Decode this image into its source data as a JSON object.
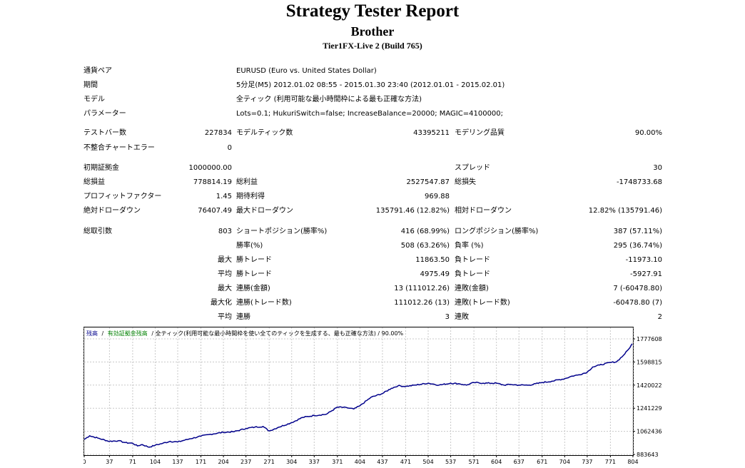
{
  "header": {
    "title": "Strategy Tester Report",
    "subtitle": "Brother",
    "server": "Tier1FX-Live 2 (Build 765)"
  },
  "settings": [
    {
      "label": "通貨ペア",
      "value": "EURUSD (Euro vs. United States Dollar)"
    },
    {
      "label": "期間",
      "value": "5分足(M5) 2012.01.02 08:55 - 2015.01.30 23:40 (2012.01.01 - 2015.02.01)"
    },
    {
      "label": "モデル",
      "value": "全ティック (利用可能な最小時間枠による最も正確な方法)"
    },
    {
      "label": "パラメーター",
      "value": "Lots=0.1; HukuriSwitch=false; IncreaseBalance=20000; MAGIC=4100000;"
    }
  ],
  "stats": {
    "test_bars": {
      "label": "テストバー数",
      "value": "227834"
    },
    "model_ticks": {
      "label": "モデルティック数",
      "value": "43395211"
    },
    "model_quality": {
      "label": "モデリング品質",
      "value": "90.00%"
    },
    "mismatch_errors": {
      "label": "不整合チャートエラー",
      "value": "0"
    },
    "initial_deposit": {
      "label": "初期証拠金",
      "value": "1000000.00"
    },
    "spread": {
      "label": "スプレッド",
      "value": "30"
    },
    "net_profit": {
      "label": "総損益",
      "value": "778814.19"
    },
    "gross_profit": {
      "label": "総利益",
      "value": "2527547.87"
    },
    "gross_loss": {
      "label": "総損失",
      "value": "-1748733.68"
    },
    "profit_factor": {
      "label": "プロフィットファクター",
      "value": "1.45"
    },
    "expected_payoff": {
      "label": "期待利得",
      "value": "969.88"
    },
    "absolute_drawdown": {
      "label": "絶対ドローダウン",
      "value": "76407.49"
    },
    "maximal_drawdown": {
      "label": "最大ドローダウン",
      "value": "135791.46 (12.82%)"
    },
    "relative_drawdown": {
      "label": "相対ドローダウン",
      "value": "12.82% (135791.46)"
    },
    "total_trades": {
      "label": "総取引数",
      "value": "803"
    },
    "short_positions": {
      "label": "ショートポジション(勝率%)",
      "value": "416 (68.99%)"
    },
    "long_positions": {
      "label": "ロングポジション(勝率%)",
      "value": "387 (57.11%)"
    },
    "profit_trades": {
      "label": "勝率(%)",
      "value": "508 (63.26%)"
    },
    "loss_trades": {
      "label": "負率 (%)",
      "value": "295 (36.74%)"
    },
    "largest": {
      "label": "最大",
      "profit_label": "勝トレード",
      "profit": "11863.50",
      "loss_label": "負トレード",
      "loss": "-11973.10"
    },
    "average": {
      "label": "平均",
      "profit_label": "勝トレード",
      "profit": "4975.49",
      "loss_label": "負トレード",
      "loss": "-5927.91"
    },
    "max_consecutive": {
      "label": "最大",
      "wins_label": "連勝(金額)",
      "wins": "13 (111012.26)",
      "losses_label": "連敗(金額)",
      "losses": "7 (-60478.80)"
    },
    "maximal_consecutive": {
      "label": "最大化",
      "wins_label": "連勝(トレード数)",
      "wins": "111012.26 (13)",
      "losses_label": "連敗(トレード数)",
      "losses": "-60478.80 (7)"
    },
    "average_consecutive": {
      "label": "平均",
      "wins_label": "連勝",
      "wins": "3",
      "losses_label": "連敗",
      "losses": "2"
    }
  },
  "chart_data": {
    "type": "line",
    "legend": {
      "balance": "残高",
      "separator": "/",
      "equity": "有効証拠金残高",
      "model": "/ 全ティック(利用可能な最小時間枠を使い全てのティックを生成する、最も正確な方法) / 90.00%"
    },
    "x_ticks": [
      "0",
      "37",
      "71",
      "104",
      "137",
      "171",
      "204",
      "237",
      "271",
      "304",
      "337",
      "371",
      "404",
      "437",
      "471",
      "504",
      "537",
      "571",
      "604",
      "637",
      "671",
      "704",
      "737",
      "771",
      "804"
    ],
    "y_ticks": [
      "1777608",
      "1598815",
      "1420022",
      "1241229",
      "1062436",
      "883643"
    ],
    "xlim": [
      0,
      803
    ],
    "ylim": [
      883643,
      1866000
    ],
    "grid": true,
    "colors": {
      "balance": "#00008b",
      "equity": "#008000",
      "grid": "#c8c8c8",
      "axis": "#000000",
      "label": "#000000"
    },
    "series": [
      {
        "name": "残高",
        "x": [
          0,
          8,
          20,
          37,
          50,
          60,
          71,
          78,
          85,
          95,
          104,
          115,
          126,
          137,
          155,
          171,
          185,
          204,
          220,
          237,
          250,
          262,
          271,
          285,
          304,
          320,
          337,
          355,
          371,
          385,
          395,
          404,
          420,
          437,
          450,
          460,
          471,
          485,
          504,
          520,
          537,
          550,
          560,
          571,
          585,
          604,
          615,
          625,
          637,
          652,
          671,
          685,
          704,
          715,
          725,
          737,
          745,
          755,
          771,
          780,
          790,
          798,
          803
        ],
        "y": [
          1000000,
          1028000,
          1010000,
          985000,
          990000,
          975000,
          970000,
          950000,
          960000,
          940000,
          955000,
          970000,
          985000,
          980000,
          1005000,
          1025000,
          1040000,
          1055000,
          1060000,
          1085000,
          1095000,
          1100000,
          1065000,
          1095000,
          1130000,
          1170000,
          1185000,
          1195000,
          1250000,
          1245000,
          1235000,
          1260000,
          1325000,
          1355000,
          1395000,
          1415000,
          1410000,
          1420000,
          1435000,
          1420000,
          1435000,
          1430000,
          1420000,
          1440000,
          1435000,
          1435000,
          1420000,
          1425000,
          1420000,
          1420000,
          1440000,
          1450000,
          1470000,
          1490000,
          1500000,
          1520000,
          1560000,
          1575000,
          1595000,
          1600000,
          1650000,
          1700000,
          1740000
        ]
      }
    ]
  }
}
